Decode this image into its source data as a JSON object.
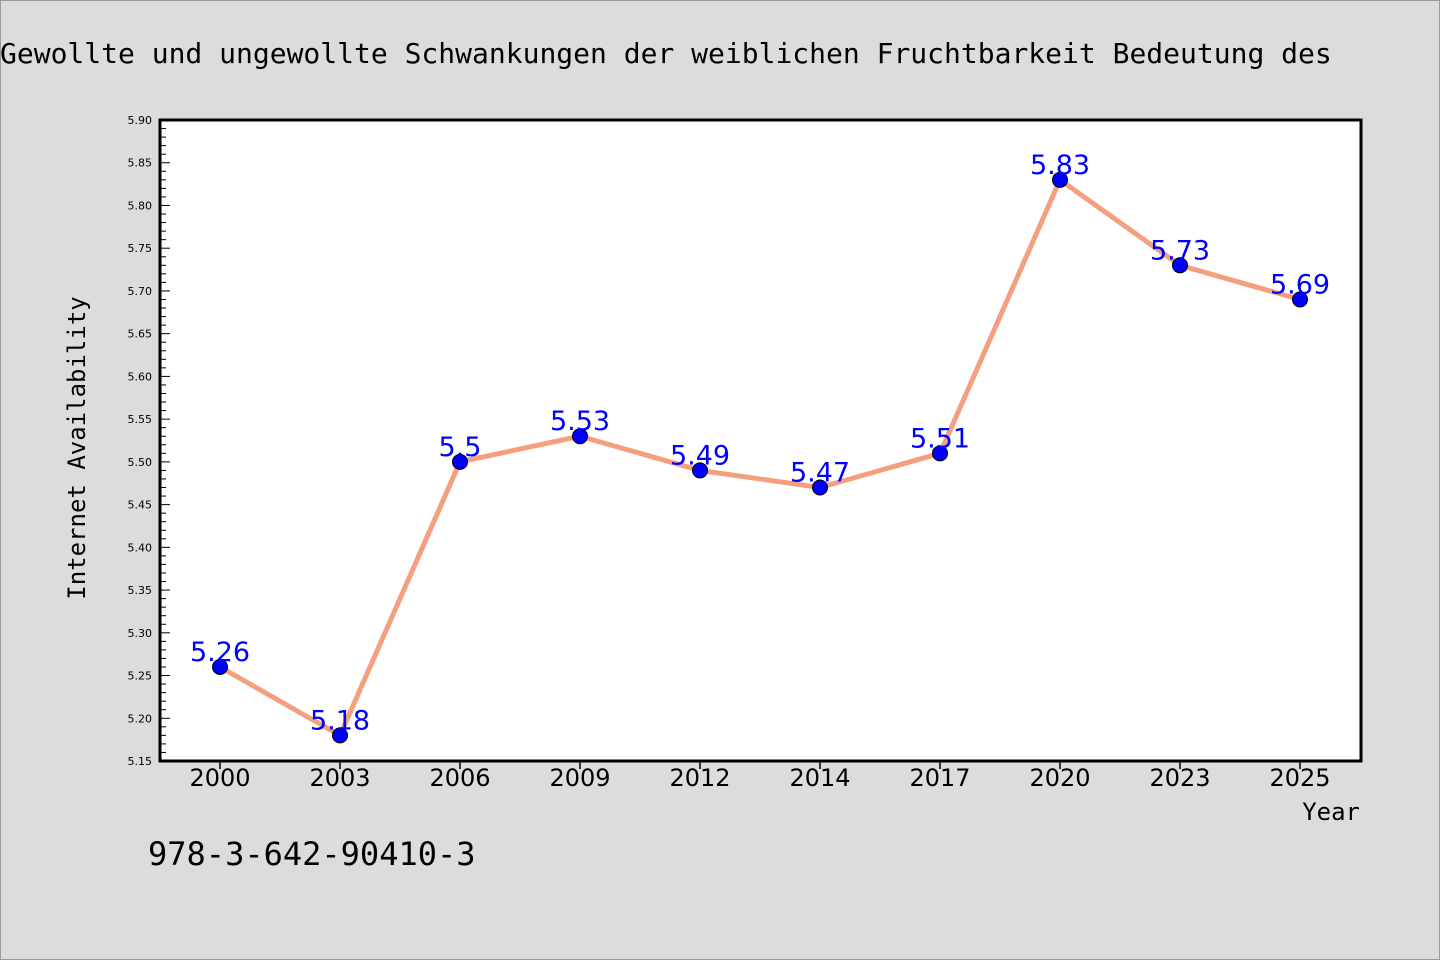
{
  "chart_data": {
    "type": "line",
    "title": "Gewollte und ungewollte Schwankungen der weiblichen Fruchtbarkeit Bedeutung des",
    "xlabel": "Year",
    "ylabel": "Internet Availability",
    "categories": [
      "2000",
      "2003",
      "2006",
      "2009",
      "2012",
      "2014",
      "2017",
      "2020",
      "2023",
      "2025"
    ],
    "series": [
      {
        "values": [
          5.26,
          5.18,
          5.5,
          5.53,
          5.49,
          5.47,
          5.51,
          5.83,
          5.73,
          5.69
        ],
        "data_labels": [
          "5.26",
          "5.18",
          "5.5",
          "5.53",
          "5.49",
          "5.47",
          "5.51",
          "5.83",
          "5.73",
          "5.69"
        ],
        "line_color": "#f4a07f",
        "marker_color": "#0000ff"
      }
    ],
    "ylim": [
      5.15,
      5.9
    ],
    "yticks": [
      "5.15",
      "5.20",
      "5.25",
      "5.30",
      "5.35",
      "5.40",
      "5.45",
      "5.50",
      "5.55",
      "5.60",
      "5.65",
      "5.70",
      "5.75",
      "5.80",
      "5.85",
      "5.90"
    ],
    "grid": false,
    "legend": "none",
    "label_color": "#0000ff",
    "background_color": "#dcdcdc",
    "plot_background_color": "#ffffff"
  },
  "footer": {
    "isbn": "978-3-642-90410-3"
  }
}
